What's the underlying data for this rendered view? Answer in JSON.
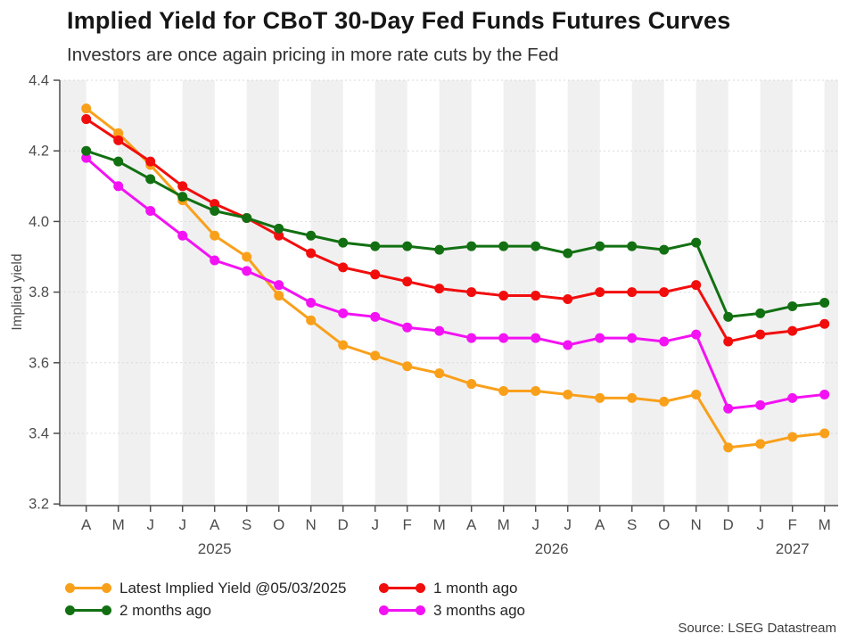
{
  "header": {
    "title": "Implied Yield for CBoT 30-Day Fed Funds Futures Curves",
    "subtitle": "Investors are once again pricing in more rate cuts by the Fed"
  },
  "source_note": "Source: LSEG Datastream",
  "chart_data": {
    "type": "line",
    "title": "Implied Yield for CBoT 30-Day Fed Funds Futures Curves",
    "subtitle": "Investors are once again pricing in more rate cuts by the Fed",
    "ylabel": "Implied yield",
    "ylim": [
      3.2,
      4.4
    ],
    "y_ticks": [
      4.4,
      4.2,
      4.0,
      3.8,
      3.6,
      3.4,
      3.2
    ],
    "grid": "horizontal-dashed",
    "background_stripes": true,
    "stripe_color": "#f0f0f0",
    "gridline_color": "#d9d9d9",
    "axis_color": "#4d4d4d",
    "tick_label_color": "#4d4d4d",
    "legend_position": "bottom",
    "x_labels": [
      "A",
      "M",
      "J",
      "J",
      "A",
      "S",
      "O",
      "N",
      "D",
      "J",
      "F",
      "M",
      "A",
      "M",
      "J",
      "J",
      "A",
      "S",
      "O",
      "N",
      "D",
      "J",
      "F",
      "M"
    ],
    "years": [
      {
        "label": "2025",
        "start": 0,
        "end": 8
      },
      {
        "label": "2026",
        "start": 9,
        "end": 20
      },
      {
        "label": "2027",
        "start": 21,
        "end": 23
      }
    ],
    "series": [
      {
        "name": "Latest Implied Yield @05/03/2025",
        "color": "#F9A01B",
        "values": [
          4.32,
          4.25,
          4.16,
          4.06,
          3.96,
          3.9,
          3.79,
          3.72,
          3.65,
          3.62,
          3.59,
          3.57,
          3.54,
          3.52,
          3.52,
          3.51,
          3.5,
          3.5,
          3.49,
          3.51,
          3.36,
          3.37,
          3.39,
          3.4
        ]
      },
      {
        "name": "1 month ago",
        "color": "#F20D0D",
        "values": [
          4.29,
          4.23,
          4.17,
          4.1,
          4.05,
          4.01,
          3.96,
          3.91,
          3.87,
          3.85,
          3.83,
          3.81,
          3.8,
          3.79,
          3.79,
          3.78,
          3.8,
          3.8,
          3.8,
          3.82,
          3.66,
          3.68,
          3.69,
          3.71
        ]
      },
      {
        "name": "2 months ago",
        "color": "#127012",
        "values": [
          4.2,
          4.17,
          4.12,
          4.07,
          4.03,
          4.01,
          3.98,
          3.96,
          3.94,
          3.93,
          3.93,
          3.92,
          3.93,
          3.93,
          3.93,
          3.91,
          3.93,
          3.93,
          3.92,
          3.94,
          3.73,
          3.74,
          3.76,
          3.77
        ]
      },
      {
        "name": "3 months ago",
        "color": "#F312F3",
        "values": [
          4.18,
          4.1,
          4.03,
          3.96,
          3.89,
          3.86,
          3.82,
          3.77,
          3.74,
          3.73,
          3.7,
          3.69,
          3.67,
          3.67,
          3.67,
          3.65,
          3.67,
          3.67,
          3.66,
          3.68,
          3.47,
          3.48,
          3.5,
          3.51
        ]
      }
    ],
    "draw_order": [
      0,
      3,
      1,
      2
    ]
  }
}
